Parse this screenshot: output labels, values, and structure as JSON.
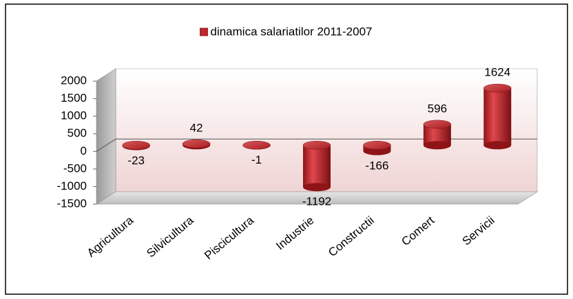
{
  "chart_data": {
    "type": "bar3d",
    "legend": "dinamica salariatilor 2011-2007",
    "categories": [
      "Agricultura",
      "Silvicultura",
      "Piscicultura",
      "Industrie",
      "Constructii",
      "Comert",
      "Servicii"
    ],
    "values": [
      -23,
      42,
      -1,
      -1192,
      -166,
      596,
      1624
    ],
    "color": "#c0282c",
    "ylim": [
      -1500,
      2000
    ],
    "yticks": [
      -1500,
      -1000,
      -500,
      0,
      500,
      1000,
      1500,
      2000
    ],
    "grid": false,
    "legend_position": "top"
  }
}
